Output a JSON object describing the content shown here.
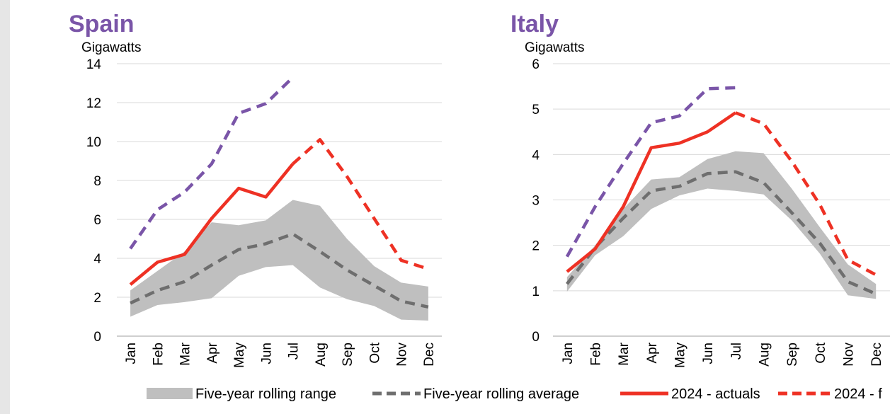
{
  "colors": {
    "title": "#7a55a8",
    "range_fill": "#bfbfbf",
    "average": "#6e6e6e",
    "actuals": "#ee3124",
    "forecast": "#ee3124",
    "purple_series": "#7a55a8",
    "gridline": "#d9d9d9"
  },
  "legend": {
    "items": [
      {
        "label": "Five-year rolling range",
        "style": "band"
      },
      {
        "label": "Five-year rolling average",
        "style": "dashed-gray"
      },
      {
        "label": "2024 - actuals",
        "style": "solid-red"
      },
      {
        "label": "2024 - f",
        "style": "dashed-red"
      }
    ]
  },
  "chart_data": [
    {
      "type": "line",
      "title": "Spain",
      "ylabel": "Gigawatts",
      "ylim": [
        0,
        14
      ],
      "yticks": [
        0,
        2,
        4,
        6,
        8,
        10,
        12,
        14
      ],
      "categories": [
        "Jan",
        "Feb",
        "Mar",
        "Apr",
        "May",
        "Jun",
        "Jul",
        "Aug",
        "Sep",
        "Oct",
        "Nov",
        "Dec"
      ],
      "grid": true,
      "range": {
        "name": "Five-year rolling range",
        "low": [
          1.0,
          1.6,
          1.75,
          1.95,
          3.1,
          3.55,
          3.65,
          2.5,
          1.9,
          1.55,
          0.85,
          0.8
        ],
        "high": [
          2.35,
          3.35,
          4.35,
          5.85,
          5.7,
          5.95,
          7.0,
          6.7,
          5.0,
          3.6,
          2.75,
          2.55
        ]
      },
      "series": [
        {
          "name": "Five-year rolling average",
          "style": "dashed-gray",
          "values": [
            1.7,
            2.35,
            2.8,
            3.65,
            4.45,
            4.75,
            5.25,
            4.35,
            3.4,
            2.6,
            1.8,
            1.5
          ]
        },
        {
          "name": "2024 - actuals",
          "style": "solid-red",
          "values": [
            2.65,
            3.8,
            4.2,
            6.05,
            7.6,
            7.15,
            8.85,
            null,
            null,
            null,
            null,
            null
          ]
        },
        {
          "style": "dashed-red",
          "values": [
            null,
            null,
            null,
            null,
            null,
            null,
            8.85,
            10.1,
            8.2,
            6.05,
            3.9,
            3.45
          ]
        },
        {
          "style": "dashed-purple",
          "values": [
            4.5,
            6.5,
            7.4,
            8.85,
            11.45,
            11.95,
            13.3,
            null,
            null,
            null,
            null,
            null
          ]
        }
      ]
    },
    {
      "type": "line",
      "title": "Italy",
      "ylabel": "Gigawatts",
      "ylim": [
        0,
        6
      ],
      "yticks": [
        0,
        1,
        2,
        3,
        4,
        5,
        6
      ],
      "categories": [
        "Jan",
        "Feb",
        "Mar",
        "Apr",
        "May",
        "Jun",
        "Jul",
        "Aug",
        "Sep",
        "Oct",
        "Nov",
        "Dec"
      ],
      "grid": true,
      "range": {
        "name": "Five-year rolling range",
        "low": [
          0.98,
          1.78,
          2.2,
          2.8,
          3.1,
          3.25,
          3.2,
          3.12,
          2.55,
          1.82,
          0.9,
          0.82
        ],
        "high": [
          1.3,
          2.0,
          2.8,
          3.45,
          3.5,
          3.9,
          4.07,
          4.03,
          3.25,
          2.4,
          1.58,
          1.15
        ]
      },
      "series": [
        {
          "name": "Five-year rolling average",
          "style": "dashed-gray",
          "values": [
            1.15,
            1.95,
            2.6,
            3.2,
            3.3,
            3.58,
            3.62,
            3.38,
            2.72,
            2.05,
            1.2,
            0.93
          ]
        },
        {
          "name": "2024 - actuals",
          "style": "solid-red",
          "values": [
            1.42,
            1.92,
            2.85,
            4.15,
            4.25,
            4.5,
            4.92,
            null,
            null,
            null,
            null,
            null
          ]
        },
        {
          "style": "dashed-red",
          "values": [
            null,
            null,
            null,
            null,
            null,
            null,
            4.92,
            4.68,
            3.85,
            2.9,
            1.68,
            1.35
          ]
        },
        {
          "style": "dashed-purple",
          "values": [
            1.75,
            2.85,
            3.8,
            4.7,
            4.85,
            5.45,
            5.47,
            null,
            null,
            null,
            null,
            null
          ]
        }
      ]
    }
  ]
}
